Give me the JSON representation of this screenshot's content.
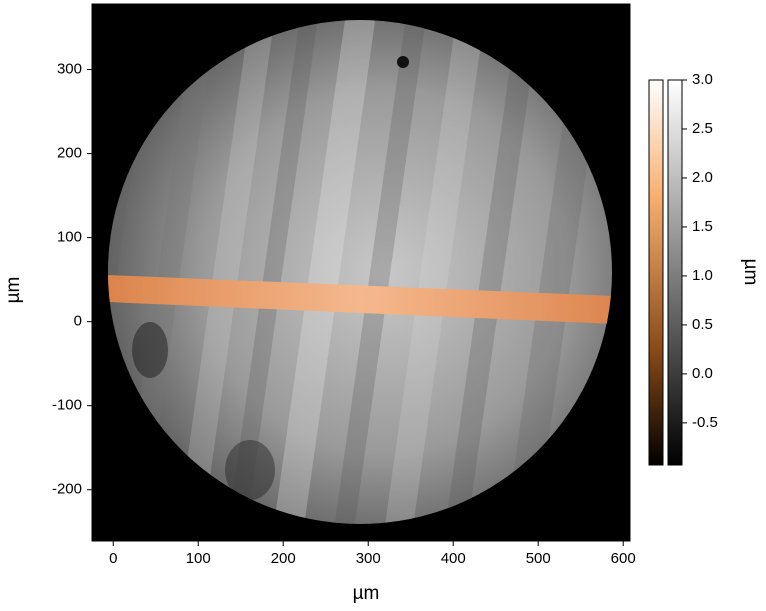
{
  "chart_data": {
    "type": "image",
    "xlabel": "µm",
    "ylabel": "µm",
    "colorbar_label": "µm",
    "xlim": [
      -25,
      608
    ],
    "ylim": [
      -261,
      378
    ],
    "xticks": [
      0,
      100,
      200,
      300,
      400,
      500,
      600
    ],
    "yticks": [
      -200,
      -100,
      0,
      100,
      200,
      300
    ],
    "clim": [
      -0.93,
      3.0
    ],
    "cticks": [
      {
        "value": 3.0,
        "label": "3.0"
      },
      2.5,
      {
        "value": 2.0,
        "label": "2.0"
      },
      1.5,
      {
        "value": 1.0,
        "label": "1.0"
      },
      0.5,
      {
        "value": 0.0,
        "label": "0.0"
      },
      -0.5
    ]
  }
}
